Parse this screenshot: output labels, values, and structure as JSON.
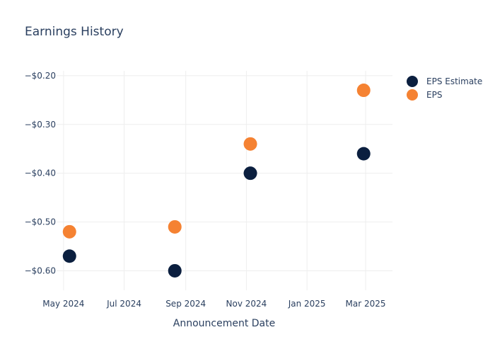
{
  "chart_data": {
    "type": "scatter",
    "title": "Earnings History",
    "xlabel": "Announcement Date",
    "ylabel": "",
    "x_ticks": [
      {
        "date": "2024-05-01",
        "label": "May 2024"
      },
      {
        "date": "2024-07-01",
        "label": "Jul 2024"
      },
      {
        "date": "2024-09-01",
        "label": "Sep 2024"
      },
      {
        "date": "2024-11-01",
        "label": "Nov 2024"
      },
      {
        "date": "2025-01-01",
        "label": "Jan 2025"
      },
      {
        "date": "2025-03-01",
        "label": "Mar 2025"
      }
    ],
    "y_ticks": [
      {
        "value": -0.2,
        "label": "−$0.20"
      },
      {
        "value": -0.3,
        "label": "−$0.30"
      },
      {
        "value": -0.4,
        "label": "−$0.40"
      },
      {
        "value": -0.5,
        "label": "−$0.50"
      },
      {
        "value": -0.6,
        "label": "−$0.60"
      }
    ],
    "xlim": [
      "2024-04-24",
      "2025-03-28"
    ],
    "ylim": [
      -0.64,
      -0.19
    ],
    "grid": true,
    "legend_position": "top-right",
    "series": [
      {
        "name": "EPS Estimate",
        "color": "#0b1f3f",
        "points": [
          {
            "x": "2024-05-07",
            "y": -0.57
          },
          {
            "x": "2024-08-21",
            "y": -0.6
          },
          {
            "x": "2024-11-05",
            "y": -0.4
          },
          {
            "x": "2025-02-27",
            "y": -0.36
          }
        ]
      },
      {
        "name": "EPS",
        "color": "#f58232",
        "points": [
          {
            "x": "2024-05-07",
            "y": -0.52
          },
          {
            "x": "2024-08-21",
            "y": -0.51
          },
          {
            "x": "2024-11-05",
            "y": -0.34
          },
          {
            "x": "2025-02-27",
            "y": -0.23
          }
        ]
      }
    ]
  }
}
